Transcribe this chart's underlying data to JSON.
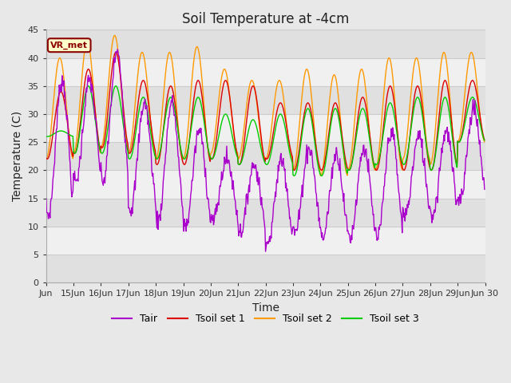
{
  "title": "Soil Temperature at -4cm",
  "xlabel": "Time",
  "ylabel": "Temperature (C)",
  "ylim": [
    0,
    45
  ],
  "yticks": [
    0,
    5,
    10,
    15,
    20,
    25,
    30,
    35,
    40,
    45
  ],
  "colors": {
    "Tair": "#aa00cc",
    "Tsoil1": "#dd0000",
    "Tsoil2": "#ff9900",
    "Tsoil3": "#00cc00"
  },
  "legend_labels": [
    "Tair",
    "Tsoil set 1",
    "Tsoil set 2",
    "Tsoil set 3"
  ],
  "annotation_text": "VR_met",
  "bg_light": "#f0f0f0",
  "bg_dark": "#e0e0e0",
  "grid_color": "#d8d8d8",
  "title_fontsize": 12,
  "axis_fontsize": 10,
  "tick_fontsize": 8,
  "tair_peaks": [
    36,
    36,
    41,
    32,
    32,
    27,
    22,
    21,
    22,
    24,
    23,
    24,
    27,
    26,
    27,
    31
  ],
  "tair_mins": [
    12,
    18,
    18,
    13,
    11,
    10,
    11,
    9,
    7,
    9,
    8,
    8,
    8,
    12,
    12,
    15
  ],
  "ts1_peaks": [
    34,
    38,
    41,
    36,
    35,
    36,
    36,
    35,
    32,
    32,
    32,
    33,
    35,
    35,
    36,
    36
  ],
  "ts1_mins": [
    22,
    23,
    24,
    23,
    21,
    21,
    22,
    21,
    22,
    20,
    20,
    20,
    20,
    20,
    20,
    25
  ],
  "ts2_peaks": [
    40,
    43,
    44,
    41,
    41,
    42,
    38,
    36,
    36,
    38,
    37,
    38,
    40,
    40,
    41,
    41
  ],
  "ts2_mins": [
    22,
    23,
    24,
    23,
    22,
    22,
    23,
    22,
    22,
    20,
    19,
    20,
    20,
    22,
    21,
    25
  ],
  "ts3_peaks": [
    27,
    35,
    35,
    33,
    33,
    33,
    30,
    29,
    30,
    31,
    31,
    31,
    32,
    33,
    33,
    33
  ],
  "ts3_mins": [
    26,
    23,
    23,
    22,
    22,
    22,
    22,
    21,
    21,
    19,
    19,
    20,
    21,
    21,
    20,
    25
  ]
}
